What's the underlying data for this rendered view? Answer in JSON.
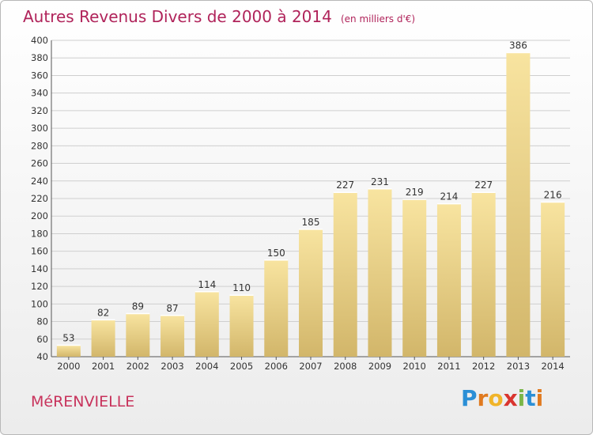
{
  "title": "Autres Revenus Divers de 2000 à 2014",
  "unit_note": "(en milliers d'€)",
  "place_name": "MéRENVIELLE",
  "logo": {
    "text": "Proxiti",
    "letters": [
      "P",
      "r",
      "o",
      "x",
      "i",
      "t",
      "i"
    ],
    "letter_colors": [
      "#2b8fd6",
      "#e07a1f",
      "#f0b429",
      "#d9352f",
      "#7ab648",
      "#2b8fd6",
      "#e07a1f"
    ]
  },
  "colors": {
    "title": "#b0235a",
    "bar_light": "#f8e4a0",
    "bar_dark": "#d2b66a",
    "grid": "#cfcfcf"
  },
  "chart_data": {
    "type": "bar",
    "categories": [
      "2000",
      "2001",
      "2002",
      "2003",
      "2004",
      "2005",
      "2006",
      "2007",
      "2008",
      "2009",
      "2010",
      "2011",
      "2012",
      "2013",
      "2014"
    ],
    "values": [
      53,
      82,
      89,
      87,
      114,
      110,
      150,
      185,
      227,
      231,
      219,
      214,
      227,
      386,
      216
    ],
    "ylim": [
      40,
      400
    ],
    "yticks": [
      40,
      60,
      80,
      100,
      120,
      140,
      160,
      180,
      200,
      220,
      240,
      260,
      280,
      300,
      320,
      340,
      360,
      380,
      400
    ],
    "grid": true
  }
}
